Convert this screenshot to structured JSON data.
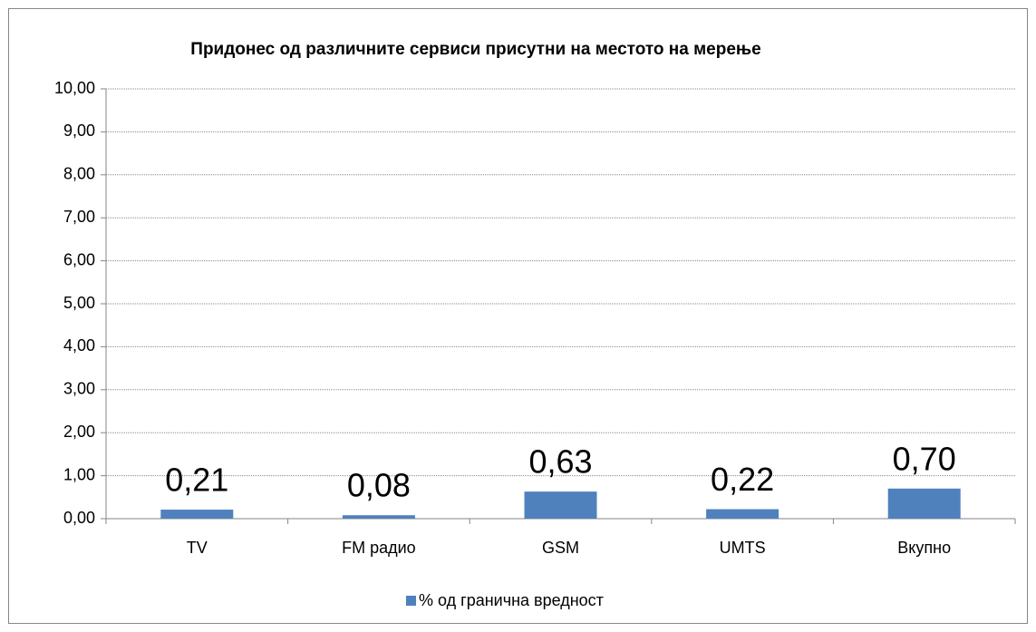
{
  "chart_data": {
    "type": "bar",
    "title": "Придонес од различните сервиси присутни на местото на мерење",
    "categories": [
      "TV",
      "FM радио",
      "GSM",
      "UMTS",
      "Вкупно"
    ],
    "series": [
      {
        "name": "% од гранична вредност",
        "color": "#4f81bd",
        "values": [
          0.21,
          0.08,
          0.63,
          0.22,
          0.7
        ],
        "value_labels": [
          "0,21",
          "0,08",
          "0,63",
          "0,22",
          "0,70"
        ]
      }
    ],
    "ylim": [
      0,
      10
    ],
    "yticks": [
      {
        "value": 0,
        "label": "0,00"
      },
      {
        "value": 1,
        "label": "1,00"
      },
      {
        "value": 2,
        "label": "2,00"
      },
      {
        "value": 3,
        "label": "3,00"
      },
      {
        "value": 4,
        "label": "4,00"
      },
      {
        "value": 5,
        "label": "5,00"
      },
      {
        "value": 6,
        "label": "6,00"
      },
      {
        "value": 7,
        "label": "7,00"
      },
      {
        "value": 8,
        "label": "8,00"
      },
      {
        "value": 9,
        "label": "9,00"
      },
      {
        "value": 10,
        "label": "10,00"
      }
    ],
    "grid": true,
    "legend": "bottom"
  }
}
